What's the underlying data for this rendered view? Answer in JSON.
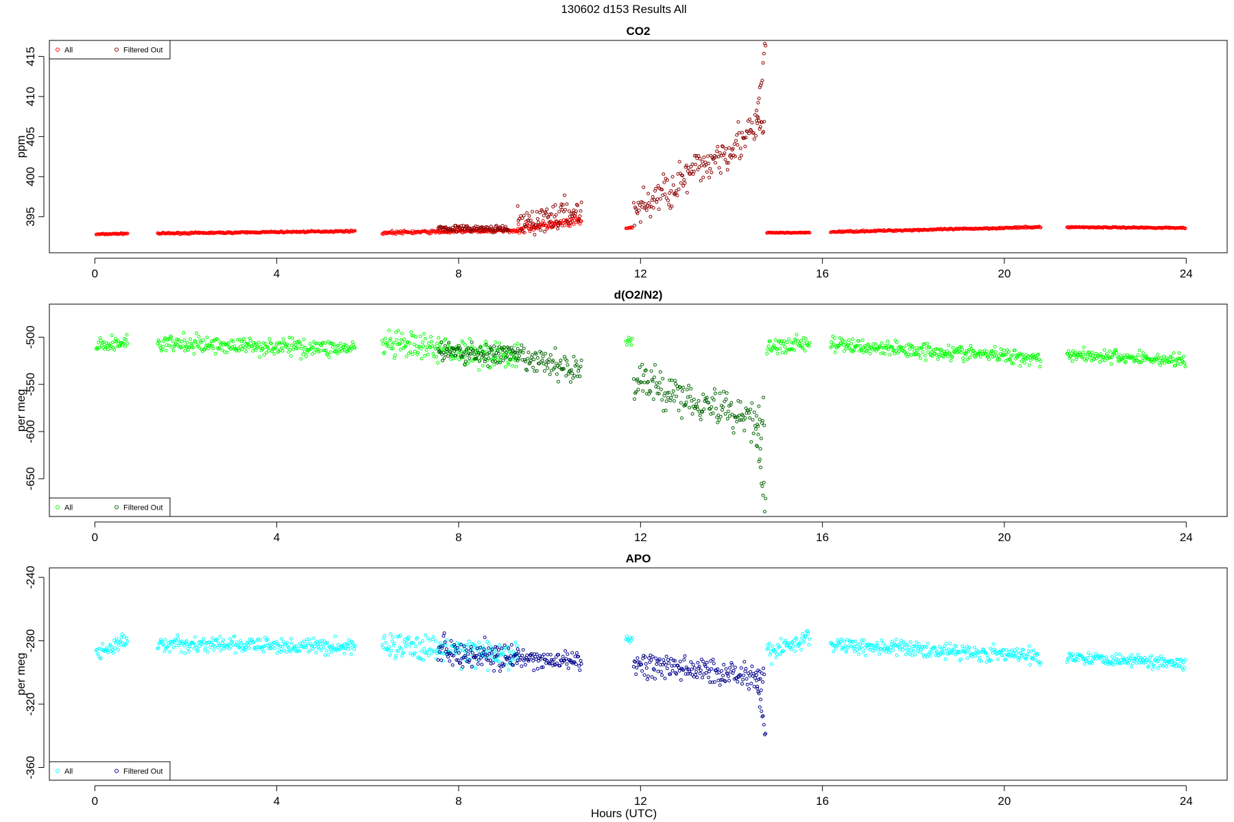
{
  "figure": {
    "suptitle": "130602   d153   Results All",
    "xlabel": "Hours (UTC)"
  },
  "chart_data": [
    {
      "type": "scatter",
      "title": "CO2",
      "ylabel": "ppm",
      "xlim": [
        -1,
        24.9
      ],
      "ylim": [
        390.5,
        417
      ],
      "xticks": [
        0,
        4,
        8,
        12,
        16,
        20,
        24
      ],
      "yticks": [
        395,
        400,
        405,
        410,
        415
      ],
      "legend": {
        "placement": "top-left",
        "entries": [
          "All",
          "Filtered Out"
        ]
      },
      "series_colors": {
        "all": "#ff0000",
        "filtered": "#8b0000"
      },
      "series": [
        {
          "name": "All",
          "color": "#ff0000",
          "segments": [
            {
              "x": [
                0.03,
                0.72
              ],
              "y": [
                392.8,
                392.9
              ],
              "noise": 0.08
            },
            {
              "x": [
                1.38,
                5.72
              ],
              "y": [
                392.9,
                393.2
              ],
              "noise": 0.1
            },
            {
              "x": [
                6.32,
                9.3
              ],
              "y": [
                393.0,
                393.3
              ],
              "noise": 0.2
            },
            {
              "x": [
                9.3,
                10.7
              ],
              "y": [
                393.5,
                394.4
              ],
              "noise": 0.6
            },
            {
              "x": [
                11.68,
                11.82
              ],
              "y": [
                393.6,
                393.6
              ],
              "noise": 0.1
            },
            {
              "x": [
                14.78,
                15.72
              ],
              "y": [
                393.0,
                393.0
              ],
              "noise": 0.05
            },
            {
              "x": [
                16.18,
                20.8
              ],
              "y": [
                393.1,
                393.7
              ],
              "noise": 0.1
            },
            {
              "x": [
                21.38,
                23.98
              ],
              "y": [
                393.7,
                393.6
              ],
              "noise": 0.08
            }
          ]
        },
        {
          "name": "Filtered Out",
          "color": "#8b0000",
          "segments": [
            {
              "x": [
                7.55,
                9.1
              ],
              "y": [
                393.6,
                393.4
              ],
              "noise": 0.4
            },
            {
              "x": [
                9.3,
                10.7
              ],
              "y": [
                394.0,
                395.8
              ],
              "noise": 1.8
            },
            {
              "x": [
                11.85,
                14.72
              ],
              "y": [
                395.5,
                406.5
              ],
              "noise": 2.4
            },
            {
              "x": [
                14.55,
                14.75
              ],
              "y": [
                407.0,
                416.5
              ],
              "noise": 1.5
            }
          ]
        }
      ]
    },
    {
      "type": "scatter",
      "title": "d(O2/N2)",
      "ylabel": "per meg",
      "xlim": [
        -1,
        24.9
      ],
      "ylim": [
        -690,
        -465
      ],
      "xticks": [
        0,
        4,
        8,
        12,
        16,
        20,
        24
      ],
      "yticks": [
        -500,
        -550,
        -600,
        -650
      ],
      "legend": {
        "placement": "bottom-left",
        "entries": [
          "All",
          "Filtered Out"
        ]
      },
      "series_colors": {
        "all": "#00ff00",
        "filtered": "#006400"
      },
      "series": [
        {
          "name": "All",
          "color": "#00ff00",
          "segments": [
            {
              "x": [
                0.03,
                0.72
              ],
              "y": [
                -510,
                -505
              ],
              "noise": 8
            },
            {
              "x": [
                1.38,
                5.72
              ],
              "y": [
                -507,
                -512
              ],
              "noise": 9
            },
            {
              "x": [
                6.32,
                9.3
              ],
              "y": [
                -508,
                -520
              ],
              "noise": 14
            },
            {
              "x": [
                11.68,
                11.82
              ],
              "y": [
                -505,
                -505
              ],
              "noise": 5
            },
            {
              "x": [
                14.78,
                15.72
              ],
              "y": [
                -512,
                -505
              ],
              "noise": 10
            },
            {
              "x": [
                16.18,
                20.8
              ],
              "y": [
                -508,
                -522
              ],
              "noise": 8
            },
            {
              "x": [
                21.38,
                23.98
              ],
              "y": [
                -518,
                -525
              ],
              "noise": 7
            }
          ]
        },
        {
          "name": "Filtered Out",
          "color": "#006400",
          "segments": [
            {
              "x": [
                7.55,
                9.3
              ],
              "y": [
                -515,
                -520
              ],
              "noise": 12
            },
            {
              "x": [
                9.3,
                10.7
              ],
              "y": [
                -522,
                -535
              ],
              "noise": 14
            },
            {
              "x": [
                11.85,
                14.72
              ],
              "y": [
                -545,
                -590
              ],
              "noise": 22
            },
            {
              "x": [
                14.55,
                14.75
              ],
              "y": [
                -600,
                -680
              ],
              "noise": 15
            }
          ]
        }
      ]
    },
    {
      "type": "scatter",
      "title": "APO",
      "ylabel": "per meg",
      "xlim": [
        -1,
        24.9
      ],
      "ylim": [
        -368,
        -234
      ],
      "xticks": [
        0,
        4,
        8,
        12,
        16,
        20,
        24
      ],
      "yticks": [
        -240,
        -280,
        -320,
        -360
      ],
      "legend": {
        "placement": "bottom-left",
        "entries": [
          "All",
          "Filtered Out"
        ]
      },
      "series_colors": {
        "all": "#00ffff",
        "filtered": "#00008b"
      },
      "series": [
        {
          "name": "All",
          "color": "#00ffff",
          "segments": [
            {
              "x": [
                0.03,
                0.72
              ],
              "y": [
                -288,
                -280
              ],
              "noise": 5
            },
            {
              "x": [
                1.38,
                5.72
              ],
              "y": [
                -282,
                -284
              ],
              "noise": 5
            },
            {
              "x": [
                6.32,
                9.3
              ],
              "y": [
                -282,
                -290
              ],
              "noise": 8
            },
            {
              "x": [
                11.68,
                11.82
              ],
              "y": [
                -280,
                -280
              ],
              "noise": 4
            },
            {
              "x": [
                14.78,
                15.72
              ],
              "y": [
                -288,
                -278
              ],
              "noise": 6
            },
            {
              "x": [
                16.18,
                20.8
              ],
              "y": [
                -282,
                -290
              ],
              "noise": 5
            },
            {
              "x": [
                21.38,
                23.98
              ],
              "y": [
                -290,
                -294
              ],
              "noise": 4
            }
          ]
        },
        {
          "name": "Filtered Out",
          "color": "#00008b",
          "segments": [
            {
              "x": [
                7.55,
                9.3
              ],
              "y": [
                -285,
                -292
              ],
              "noise": 9
            },
            {
              "x": [
                9.3,
                10.7
              ],
              "y": [
                -292,
                -293
              ],
              "noise": 6
            },
            {
              "x": [
                11.85,
                14.72
              ],
              "y": [
                -295,
                -302
              ],
              "noise": 8
            },
            {
              "x": [
                14.55,
                14.75
              ],
              "y": [
                -305,
                -340
              ],
              "noise": 4
            }
          ]
        }
      ]
    }
  ]
}
